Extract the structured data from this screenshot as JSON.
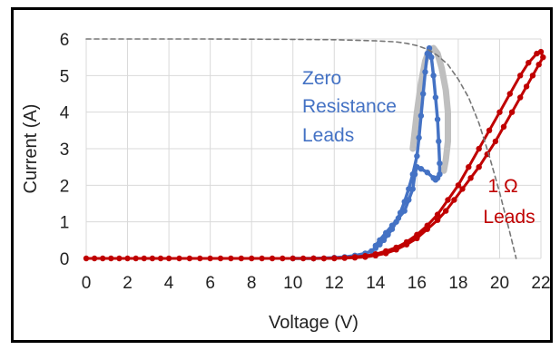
{
  "chart_data": {
    "type": "scatter",
    "xlabel": "Voltage (V)",
    "ylabel": "Current (A)",
    "xlim": [
      0,
      22
    ],
    "ylim": [
      0,
      6
    ],
    "xticks": [
      "0",
      "2",
      "4",
      "6",
      "8",
      "10",
      "12",
      "14",
      "16",
      "18",
      "20",
      "22"
    ],
    "yticks": [
      "0",
      "1",
      "2",
      "3",
      "4",
      "5",
      "6"
    ],
    "grid": true,
    "colors": {
      "zero": "#4472c4",
      "one_ohm": "#c00000",
      "gray": "#bfbfbf",
      "limit": "#777777"
    },
    "annotations": [
      {
        "lines": [
          "Zero",
          "Resistance",
          "Leads"
        ],
        "color": "#4472c4"
      },
      {
        "lines": [
          "1 Ω",
          "Leads"
        ],
        "color": "#c00000"
      }
    ],
    "series": [
      {
        "key": "limit",
        "style": "dashed-line",
        "x": [
          0,
          6,
          10,
          12,
          14,
          15,
          15.5,
          16,
          16.5,
          17,
          17.5,
          18,
          18.5,
          19,
          19.5,
          20,
          20.5,
          20.8
        ],
        "y": [
          6,
          6,
          5.99,
          5.98,
          5.95,
          5.92,
          5.88,
          5.82,
          5.72,
          5.55,
          5.3,
          4.9,
          4.4,
          3.7,
          2.8,
          1.8,
          0.7,
          0
        ]
      },
      {
        "key": "gray",
        "style": "line",
        "x": [
          15.8,
          16.0,
          16.2,
          16.4,
          16.6,
          16.8,
          17.0,
          17.2,
          17.4,
          17.5,
          17.5,
          17.4,
          17.3
        ],
        "y": [
          3.0,
          4.0,
          4.8,
          5.4,
          5.7,
          5.75,
          5.6,
          5.2,
          4.6,
          4.0,
          3.2,
          2.7,
          2.4
        ]
      },
      {
        "key": "zero",
        "style": "points",
        "x": [
          10,
          11,
          12,
          12.5,
          13,
          13.5,
          13.8,
          14.0,
          14.2,
          14.4,
          14.6,
          14.8,
          15.0,
          15.2,
          15.4,
          15.6,
          15.8,
          16.0,
          16.1,
          16.2,
          16.3,
          16.4,
          16.5,
          16.6,
          16.7,
          16.8,
          16.9,
          17.0,
          17.05,
          17.1,
          17.1,
          17.0,
          16.9,
          16.8,
          16.5,
          16.2,
          16.0,
          15.9,
          15.8,
          15.6,
          15.4,
          15.1,
          14.8,
          14.5,
          14.2,
          14.0
        ],
        "y": [
          0,
          0,
          0.02,
          0.04,
          0.08,
          0.14,
          0.2,
          0.28,
          0.38,
          0.5,
          0.65,
          0.8,
          1.0,
          1.25,
          1.55,
          1.9,
          2.3,
          2.8,
          3.3,
          3.9,
          4.5,
          5.1,
          5.6,
          5.75,
          5.5,
          5.0,
          4.4,
          3.8,
          3.2,
          2.6,
          2.3,
          2.2,
          2.15,
          2.2,
          2.35,
          2.45,
          2.5,
          2.3,
          1.9,
          1.6,
          1.3,
          1.1,
          0.9,
          0.7,
          0.5,
          0.35
        ]
      },
      {
        "key": "one_ohm",
        "style": "points",
        "x": [
          0,
          0.4,
          0.8,
          1.2,
          1.6,
          2,
          2.4,
          2.8,
          3.2,
          3.6,
          4,
          4.5,
          5,
          5.5,
          6,
          6.5,
          7,
          7.5,
          8,
          8.5,
          9,
          9.5,
          10,
          10.5,
          11,
          11.5,
          12,
          12.5,
          13,
          13.5,
          14,
          14.5,
          15,
          15.5,
          16,
          16.5,
          17,
          17.5,
          18,
          18.5,
          19,
          19.5,
          20,
          20.5,
          21,
          21.4,
          21.8,
          22,
          22.1,
          21.9,
          21.6,
          21.3,
          21.0,
          20.6,
          20.2,
          19.8,
          19.4,
          19.0,
          18.6,
          18.2,
          17.8,
          17.4,
          17.0,
          16.5,
          16.0,
          15.5,
          15.0,
          14.5,
          14.0,
          13.5,
          13.0,
          12.5,
          12.0,
          11.5,
          11.0
        ],
        "y": [
          0,
          0,
          0,
          0,
          0,
          0,
          0,
          0,
          0,
          0,
          0,
          0,
          0,
          0,
          0,
          0,
          0,
          0,
          0,
          0,
          0,
          0,
          0,
          0,
          0,
          0,
          0.01,
          0.02,
          0.04,
          0.07,
          0.12,
          0.2,
          0.3,
          0.45,
          0.65,
          0.9,
          1.2,
          1.6,
          2.0,
          2.5,
          3.0,
          3.5,
          4.0,
          4.5,
          5.0,
          5.35,
          5.6,
          5.65,
          5.5,
          5.3,
          5.0,
          4.7,
          4.4,
          4.0,
          3.6,
          3.2,
          2.85,
          2.5,
          2.2,
          1.9,
          1.6,
          1.3,
          1.05,
          0.8,
          0.55,
          0.38,
          0.24,
          0.14,
          0.08,
          0.04,
          0.02,
          0.01,
          0,
          0,
          0
        ]
      }
    ]
  }
}
